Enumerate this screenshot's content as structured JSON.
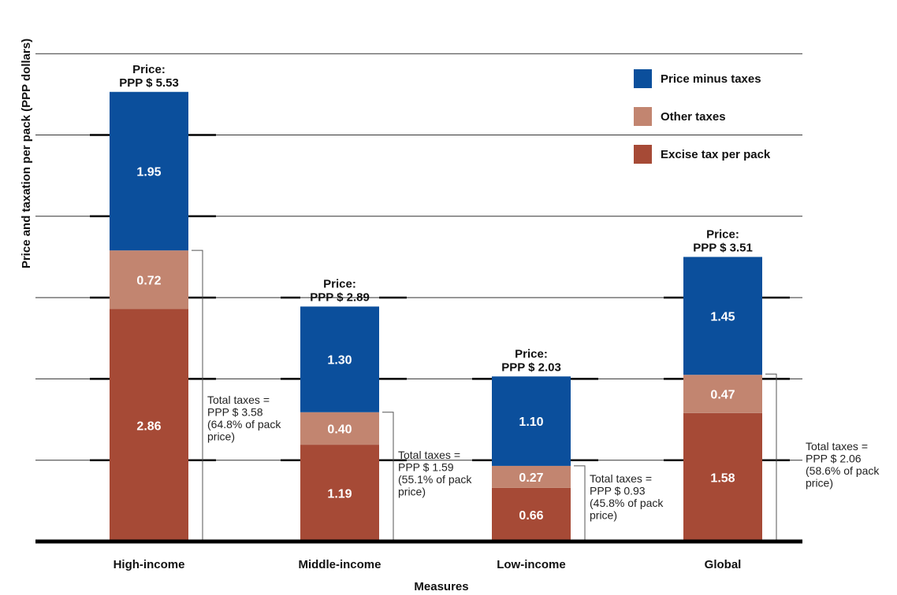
{
  "chart_data": {
    "type": "bar",
    "stacked": true,
    "title": "",
    "xlabel": "Measures",
    "ylabel": "Price and taxation per pack (PPP dollars)",
    "ylim": [
      0,
      6
    ],
    "grid": true,
    "legend_position": "top-right",
    "categories": [
      "High-income",
      "Middle-income",
      "Low-income",
      "Global"
    ],
    "series": [
      {
        "name": "Excise tax per pack",
        "color": "#a64a36",
        "values": [
          2.86,
          1.19,
          0.66,
          1.58
        ],
        "labels": [
          "2.86",
          "1.19",
          "0.66",
          "1.58"
        ]
      },
      {
        "name": "Other taxes",
        "color": "#c28570",
        "values": [
          0.72,
          0.4,
          0.27,
          0.47
        ],
        "labels": [
          "0.72",
          "0.40",
          "0.27",
          "0.47"
        ]
      },
      {
        "name": "Price minus taxes",
        "color": "#0b4f9c",
        "values": [
          1.95,
          1.3,
          1.1,
          1.45
        ],
        "labels": [
          "1.95",
          "1.30",
          "1.10",
          "1.45"
        ]
      }
    ],
    "legend_order": [
      2,
      1,
      0
    ],
    "price_labels": [
      {
        "line1": "Price:",
        "line2": "PPP $ 5.53"
      },
      {
        "line1": "Price:",
        "line2": "PPP $ 2.89"
      },
      {
        "line1": "Price:",
        "line2": "PPP $ 2.03"
      },
      {
        "line1": "Price:",
        "line2": "PPP $ 3.51"
      }
    ],
    "total_taxes": [
      {
        "value": 3.58,
        "lines": [
          "Total taxes =",
          "PPP $ 3.58",
          "(64.8% of pack",
          "price)"
        ]
      },
      {
        "value": 1.59,
        "lines": [
          "Total taxes =",
          "PPP $ 1.59",
          "(55.1% of pack",
          "price)"
        ]
      },
      {
        "value": 0.93,
        "lines": [
          "Total taxes =",
          "PPP $ 0.93",
          "(45.8% of pack",
          "price)"
        ]
      },
      {
        "value": 2.06,
        "lines": [
          "Total taxes =",
          "PPP $ 2.06",
          "(58.6% of pack",
          "price)"
        ]
      }
    ]
  }
}
